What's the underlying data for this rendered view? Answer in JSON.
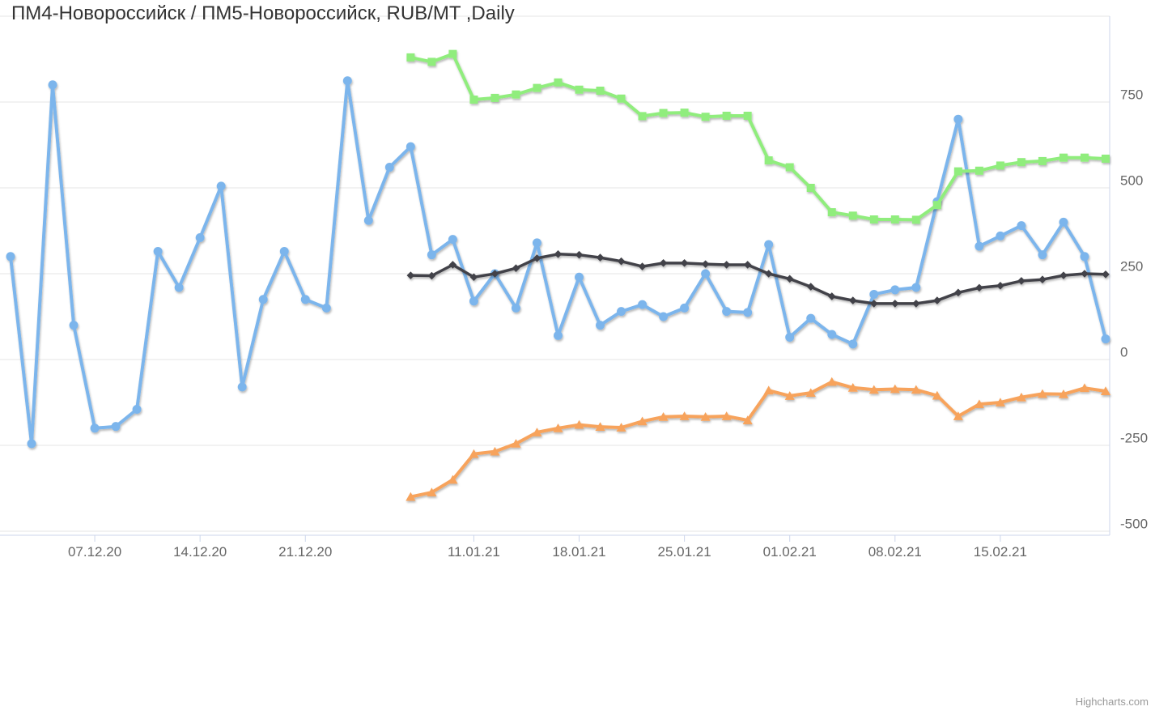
{
  "chart": {
    "title": "ПМ4-Новороссийск / ПМ5-Новороссийск, RUB/MT ,Daily",
    "credits": "Highcharts.com"
  },
  "colors": {
    "background": "#ffffff",
    "gridline": "#e6e6e6",
    "axis_line": "#ccd6eb",
    "axis_label": "#666666",
    "title": "#333333",
    "credits": "#999999",
    "series_blue": "#7cb5ec",
    "series_black": "#434348",
    "series_green": "#90ed7d",
    "series_orange": "#f7a35c"
  },
  "chart_data": {
    "type": "line",
    "title": "ПМ4-Новороссийск / ПМ5-Новороссийск, RUB/MT ,Daily",
    "xlabel": "",
    "ylabel": "",
    "legend": "none",
    "grid": "on",
    "x_dates": [
      "01.12.20",
      "02.12.20",
      "03.12.20",
      "04.12.20",
      "07.12.20",
      "08.12.20",
      "09.12.20",
      "10.12.20",
      "11.12.20",
      "14.12.20",
      "15.12.20",
      "16.12.20",
      "17.12.20",
      "18.12.20",
      "21.12.20",
      "22.12.20",
      "23.12.20",
      "24.12.20",
      "25.12.20",
      "28.12.20",
      "29.12.20",
      "30.12.20",
      "11.01.21",
      "12.01.21",
      "13.01.21",
      "14.01.21",
      "15.01.21",
      "18.01.21",
      "19.01.21",
      "20.01.21",
      "21.01.21",
      "22.01.21",
      "25.01.21",
      "26.01.21",
      "27.01.21",
      "28.01.21",
      "29.01.21",
      "01.02.21",
      "02.02.21",
      "03.02.21",
      "04.02.21",
      "05.02.21",
      "08.02.21",
      "09.02.21",
      "10.02.21",
      "11.02.21",
      "12.02.21",
      "15.02.21",
      "16.02.21",
      "17.02.21",
      "18.02.21",
      "19.02.21",
      "22.02.21"
    ],
    "xAxis": {
      "tick_indices": [
        4,
        9,
        14,
        22,
        27,
        32,
        37,
        42,
        47
      ]
    },
    "yAxis": {
      "tick_values": [
        750,
        500,
        250,
        0,
        -250,
        -500
      ],
      "gridline_values": [
        1000,
        750,
        500,
        250,
        0,
        -250,
        -500
      ],
      "min": -512,
      "max": 1000
    },
    "series": [
      {
        "name": "blue",
        "color": "#7cb5ec",
        "marker": "circle",
        "start_index": 0,
        "values": [
          300,
          -245,
          800,
          100,
          -200,
          -195,
          -145,
          315,
          210,
          355,
          505,
          -80,
          175,
          315,
          175,
          150,
          812,
          405,
          560,
          620,
          305,
          350,
          170,
          250,
          150,
          340,
          70,
          240,
          100,
          140,
          160,
          125,
          150,
          250,
          140,
          137,
          335,
          65,
          120,
          73,
          45,
          190,
          203,
          210,
          460,
          700,
          330,
          360,
          390,
          305,
          400,
          300,
          60
        ]
      },
      {
        "name": "black",
        "color": "#434348",
        "marker": "diamond",
        "start_index": 19,
        "values": [
          245,
          244,
          276,
          240,
          250,
          266,
          295,
          307,
          305,
          297,
          286,
          271,
          281,
          281,
          278,
          276,
          276,
          250,
          235,
          212,
          184,
          172,
          163,
          163,
          163,
          172,
          195,
          209,
          215,
          229,
          233,
          245,
          250,
          248
        ]
      },
      {
        "name": "green",
        "color": "#90ed7d",
        "marker": "square",
        "start_index": 19,
        "values": [
          880,
          867,
          890,
          757,
          762,
          772,
          791,
          807,
          786,
          783,
          760,
          709,
          718,
          719,
          707,
          710,
          710,
          580,
          560,
          500,
          429,
          419,
          408,
          408,
          407,
          450,
          548,
          550,
          565,
          575,
          578,
          588,
          588,
          585
        ]
      },
      {
        "name": "orange",
        "color": "#f7a35c",
        "marker": "triangle",
        "start_index": 19,
        "values": [
          -400,
          -387,
          -350,
          -275,
          -268,
          -245,
          -212,
          -200,
          -190,
          -196,
          -198,
          -180,
          -167,
          -165,
          -167,
          -165,
          -177,
          -90,
          -106,
          -97,
          -65,
          -82,
          -88,
          -86,
          -88,
          -105,
          -165,
          -130,
          -125,
          -110,
          -100,
          -101,
          -83,
          -92
        ]
      }
    ]
  }
}
